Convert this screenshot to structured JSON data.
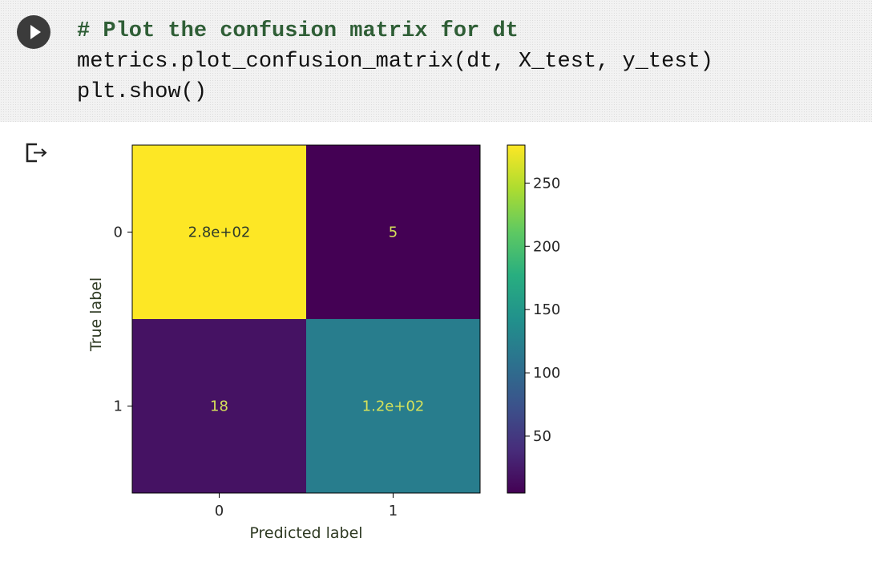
{
  "cell": {
    "code_lines": [
      "# Plot the confusion matrix for dt",
      "metrics.plot_confusion_matrix(dt, X_test, y_test)",
      "plt.show()"
    ],
    "run_icon": "play-icon",
    "output_icon": "output-redirect-icon"
  },
  "chart_data": {
    "type": "heatmap",
    "xlabel": "Predicted label",
    "ylabel": "True label",
    "x_ticks": [
      "0",
      "1"
    ],
    "y_ticks": [
      "0",
      "1"
    ],
    "matrix": [
      [
        280,
        5
      ],
      [
        18,
        120
      ]
    ],
    "cell_labels": [
      [
        "2.8e+02",
        "5"
      ],
      [
        "18",
        "1.2e+02"
      ]
    ],
    "colormap": "viridis",
    "colorbar": {
      "min": 5,
      "max": 280,
      "ticks": [
        "250",
        "200",
        "150",
        "100",
        "50"
      ]
    },
    "colors": {
      "low": "#440154",
      "mid": "#21918c",
      "high": "#fde725",
      "axis_text": "#262626"
    }
  }
}
